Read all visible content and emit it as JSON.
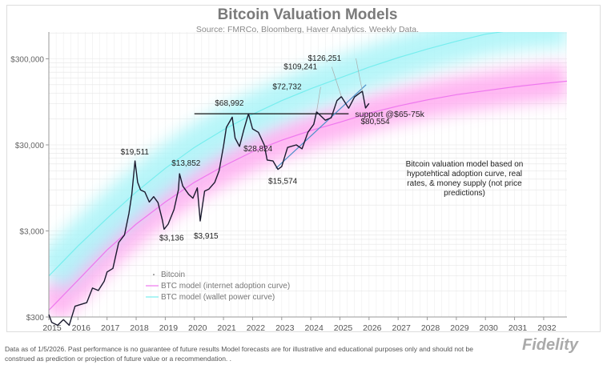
{
  "chart_data": {
    "type": "line",
    "title": "Bitcoin Valuation Models",
    "subtitle": "Source: FMRCo, Bloomberg, Haver Analytics. Weekly Data.",
    "y_scale": "log",
    "ylim": [
      300,
      700000
    ],
    "xlim": [
      2015,
      2032.8
    ],
    "y_ticks": [
      {
        "v": 300,
        "label": "$300"
      },
      {
        "v": 3000,
        "label": "$3,000"
      },
      {
        "v": 30000,
        "label": "$30,000"
      },
      {
        "v": 300000,
        "label": "$300,000"
      }
    ],
    "x_ticks": [
      "2015",
      "2016",
      "2017",
      "2018",
      "2019",
      "2020",
      "2021",
      "2022",
      "2023",
      "2024",
      "2025",
      "2026",
      "2027",
      "2028",
      "2029",
      "2030",
      "2031",
      "2032"
    ],
    "grid": true,
    "legend_placement": "bottom-left",
    "series": [
      {
        "name": "Bitcoin",
        "color": "#1a1a2e",
        "points": [
          [
            2015.0,
            320
          ],
          [
            2015.1,
            260
          ],
          [
            2015.3,
            240
          ],
          [
            2015.5,
            280
          ],
          [
            2015.7,
            240
          ],
          [
            2015.9,
            400
          ],
          [
            2016.1,
            420
          ],
          [
            2016.3,
            440
          ],
          [
            2016.5,
            650
          ],
          [
            2016.7,
            610
          ],
          [
            2016.9,
            780
          ],
          [
            2017.0,
            1000
          ],
          [
            2017.2,
            1100
          ],
          [
            2017.4,
            2200
          ],
          [
            2017.6,
            2700
          ],
          [
            2017.75,
            4800
          ],
          [
            2017.85,
            8000
          ],
          [
            2017.96,
            19511
          ],
          [
            2018.05,
            11000
          ],
          [
            2018.15,
            9000
          ],
          [
            2018.3,
            8500
          ],
          [
            2018.45,
            6500
          ],
          [
            2018.6,
            7500
          ],
          [
            2018.75,
            6400
          ],
          [
            2018.9,
            4000
          ],
          [
            2018.96,
            3136
          ],
          [
            2019.1,
            3600
          ],
          [
            2019.3,
            5300
          ],
          [
            2019.45,
            9000
          ],
          [
            2019.49,
            13852
          ],
          [
            2019.6,
            10000
          ],
          [
            2019.8,
            8000
          ],
          [
            2019.95,
            7200
          ],
          [
            2020.1,
            9500
          ],
          [
            2020.2,
            3915
          ],
          [
            2020.35,
            8700
          ],
          [
            2020.5,
            9200
          ],
          [
            2020.7,
            11000
          ],
          [
            2020.85,
            15000
          ],
          [
            2021.0,
            29000
          ],
          [
            2021.1,
            48000
          ],
          [
            2021.3,
            63000
          ],
          [
            2021.4,
            36000
          ],
          [
            2021.55,
            28824
          ],
          [
            2021.7,
            45000
          ],
          [
            2021.86,
            68992
          ],
          [
            2022.0,
            46000
          ],
          [
            2022.2,
            42000
          ],
          [
            2022.4,
            30000
          ],
          [
            2022.5,
            20000
          ],
          [
            2022.7,
            19500
          ],
          [
            2022.87,
            15574
          ],
          [
            2023.0,
            16800
          ],
          [
            2023.2,
            28000
          ],
          [
            2023.5,
            30000
          ],
          [
            2023.7,
            27000
          ],
          [
            2023.9,
            42000
          ],
          [
            2024.1,
            52000
          ],
          [
            2024.2,
            72732
          ],
          [
            2024.5,
            58000
          ],
          [
            2024.7,
            62000
          ],
          [
            2024.9,
            98000
          ],
          [
            2025.05,
            109241
          ],
          [
            2025.3,
            80000
          ],
          [
            2025.5,
            108000
          ],
          [
            2025.65,
            118000
          ],
          [
            2025.77,
            126251
          ],
          [
            2025.88,
            80554
          ],
          [
            2026.0,
            91000
          ]
        ]
      },
      {
        "name": "BTC model (internet adoption curve)",
        "color": "#ee77ee",
        "band": "#ffaaf0",
        "points": [
          [
            2015,
            360
          ],
          [
            2016,
            800
          ],
          [
            2017,
            1800
          ],
          [
            2018,
            3600
          ],
          [
            2019,
            6500
          ],
          [
            2020,
            11000
          ],
          [
            2021,
            17000
          ],
          [
            2022,
            25000
          ],
          [
            2023,
            34000
          ],
          [
            2024,
            44000
          ],
          [
            2025,
            55000
          ],
          [
            2026,
            70000
          ],
          [
            2027,
            85000
          ],
          [
            2028,
            100000
          ],
          [
            2029,
            115000
          ],
          [
            2030,
            128000
          ],
          [
            2031,
            142000
          ],
          [
            2032,
            155000
          ],
          [
            2032.8,
            165000
          ]
        ]
      },
      {
        "name": "BTC model (wallet power curve)",
        "color": "#77eeee",
        "band": "#aaf4f8",
        "points": [
          [
            2015,
            900
          ],
          [
            2016,
            2000
          ],
          [
            2017,
            4200
          ],
          [
            2018,
            8500
          ],
          [
            2019,
            16000
          ],
          [
            2020,
            28000
          ],
          [
            2021,
            45000
          ],
          [
            2022,
            68000
          ],
          [
            2023,
            98000
          ],
          [
            2024,
            135000
          ],
          [
            2025,
            180000
          ],
          [
            2026,
            240000
          ],
          [
            2027,
            310000
          ],
          [
            2028,
            390000
          ],
          [
            2029,
            480000
          ],
          [
            2030,
            580000
          ],
          [
            2031,
            650000
          ],
          [
            2032,
            700000
          ],
          [
            2032.8,
            700000
          ]
        ]
      }
    ],
    "annotations": [
      {
        "label": "$19,511",
        "x": 2017.96,
        "y": 19511
      },
      {
        "label": "$3,136",
        "x": 2018.96,
        "y": 3136
      },
      {
        "label": "$13,852",
        "x": 2019.49,
        "y": 13852
      },
      {
        "label": "$3,915",
        "x": 2020.2,
        "y": 3915
      },
      {
        "label": "$68,992",
        "x": 2021.86,
        "y": 68992
      },
      {
        "label": "$28,824",
        "x": 2021.55,
        "y": 28824
      },
      {
        "label": "$15,574",
        "x": 2022.87,
        "y": 15574
      },
      {
        "label": "$72,732",
        "x": 2024.2,
        "y": 72732
      },
      {
        "label": "$109,241",
        "x": 2025.05,
        "y": 109241
      },
      {
        "label": "$126,251",
        "x": 2025.77,
        "y": 126251
      },
      {
        "label": "$80,554",
        "x": 2025.88,
        "y": 80554
      }
    ],
    "support_line": {
      "label": "support @$65-75k",
      "y": 69000,
      "x": [
        2020.0,
        2025.3
      ]
    },
    "trend_line": {
      "x": [
        2022.8,
        2025.9
      ],
      "y": [
        16000,
        150000
      ],
      "color": "#4a90c8"
    },
    "note": "Bitcoin valuation model based on hypotehtical adoption curve, real rates, & money supply (not price predictions)"
  },
  "footer": "Data as of 1/5/2026. Past performance is no guarantee of future results Model forecasts are for illustrative and educational purposes only and should not be construed as prediction or projection of future value or a recommendation. .",
  "logo": "Fidelity"
}
